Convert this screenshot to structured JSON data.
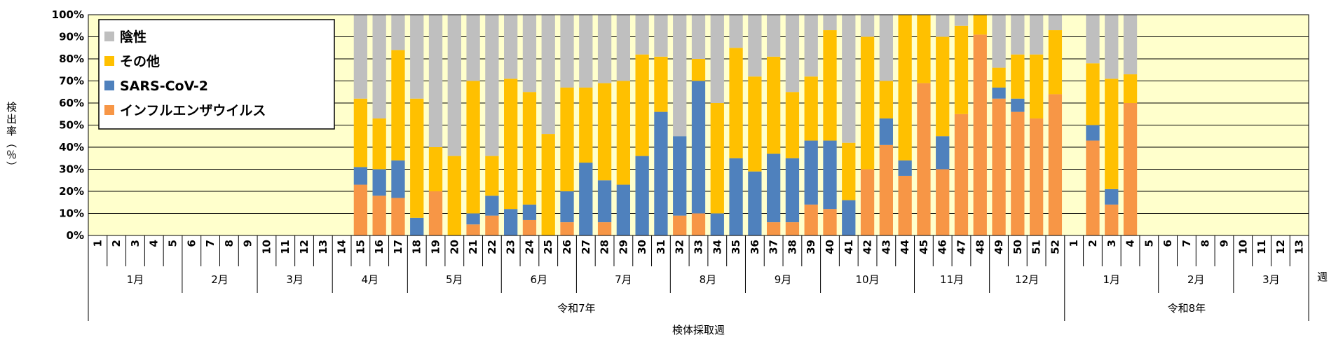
{
  "chart_data": {
    "type": "bar",
    "stacked": true,
    "ylabel": "検出率（％）",
    "xlabel": "検体採取週",
    "x_unit_label": "週",
    "ylim": [
      0,
      100
    ],
    "yticks": [
      "0%",
      "10%",
      "20%",
      "30%",
      "40%",
      "50%",
      "60%",
      "70%",
      "80%",
      "90%",
      "100%"
    ],
    "grid": true,
    "legend_position": "top-left",
    "colors": {
      "plot_background": "#ffffcc",
      "influenza": "#f79646",
      "sars": "#4f81bd",
      "other": "#ffc000",
      "negative": "#bfbfbf"
    },
    "categories": [
      "1",
      "2",
      "3",
      "4",
      "5",
      "6",
      "7",
      "8",
      "9",
      "10",
      "11",
      "12",
      "13",
      "14",
      "15",
      "16",
      "17",
      "18",
      "19",
      "20",
      "21",
      "22",
      "23",
      "24",
      "25",
      "26",
      "27",
      "28",
      "29",
      "30",
      "31",
      "32",
      "33",
      "34",
      "35",
      "36",
      "37",
      "38",
      "39",
      "40",
      "41",
      "42",
      "43",
      "44",
      "45",
      "46",
      "47",
      "48",
      "49",
      "50",
      "51",
      "52",
      "1",
      "2",
      "3",
      "4",
      "5",
      "6",
      "7",
      "8",
      "9",
      "10",
      "11",
      "12",
      "13"
    ],
    "months": [
      {
        "label": "1月",
        "span": [
          0,
          4
        ]
      },
      {
        "label": "2月",
        "span": [
          5,
          8
        ]
      },
      {
        "label": "3月",
        "span": [
          9,
          12
        ]
      },
      {
        "label": "4月",
        "span": [
          13,
          16
        ]
      },
      {
        "label": "5月",
        "span": [
          17,
          21
        ]
      },
      {
        "label": "6月",
        "span": [
          22,
          25
        ]
      },
      {
        "label": "7月",
        "span": [
          26,
          30
        ]
      },
      {
        "label": "8月",
        "span": [
          31,
          34
        ]
      },
      {
        "label": "9月",
        "span": [
          35,
          38
        ]
      },
      {
        "label": "10月",
        "span": [
          39,
          43
        ]
      },
      {
        "label": "11月",
        "span": [
          44,
          47
        ]
      },
      {
        "label": "12月",
        "span": [
          48,
          51
        ]
      },
      {
        "label": "1月",
        "span": [
          52,
          56
        ]
      },
      {
        "label": "2月",
        "span": [
          57,
          60
        ]
      },
      {
        "label": "3月",
        "span": [
          61,
          64
        ]
      }
    ],
    "years": [
      {
        "label": "令和7年",
        "span": [
          0,
          51
        ]
      },
      {
        "label": "令和8年",
        "span": [
          52,
          64
        ]
      }
    ],
    "series": [
      {
        "name": "インフルエンザウイルス",
        "color": "#f79646",
        "values": [
          0,
          0,
          0,
          0,
          0,
          0,
          0,
          0,
          0,
          0,
          0,
          0,
          0,
          0,
          23,
          18,
          17,
          0,
          20,
          0,
          5,
          9,
          0,
          7,
          0,
          6,
          0,
          6,
          0,
          0,
          0,
          9,
          10,
          0,
          0,
          0,
          6,
          6,
          14,
          12,
          0,
          30,
          41,
          27,
          69,
          30,
          55,
          91,
          62,
          56,
          53,
          64,
          0,
          43,
          14,
          60,
          0,
          0,
          0,
          0,
          0,
          0,
          0,
          0,
          0
        ]
      },
      {
        "name": "SARS-CoV-2",
        "color": "#4f81bd",
        "values": [
          0,
          0,
          0,
          0,
          0,
          0,
          0,
          0,
          0,
          0,
          0,
          0,
          0,
          0,
          8,
          12,
          17,
          8,
          0,
          0,
          5,
          9,
          12,
          7,
          0,
          14,
          33,
          19,
          23,
          36,
          56,
          36,
          60,
          10,
          35,
          29,
          31,
          29,
          29,
          31,
          16,
          0,
          12,
          7,
          0,
          15,
          0,
          0,
          5,
          6,
          0,
          0,
          0,
          7,
          7,
          0,
          0,
          0,
          0,
          0,
          0,
          0,
          0,
          0,
          0
        ]
      },
      {
        "name": "その他",
        "color": "#ffc000",
        "values": [
          0,
          0,
          0,
          0,
          0,
          0,
          0,
          0,
          0,
          0,
          0,
          0,
          0,
          0,
          31,
          23,
          50,
          54,
          20,
          36,
          60,
          18,
          59,
          51,
          46,
          47,
          34,
          44,
          47,
          46,
          25,
          0,
          10,
          50,
          50,
          43,
          44,
          30,
          29,
          50,
          26,
          60,
          17,
          66,
          31,
          45,
          40,
          9,
          9,
          20,
          29,
          29,
          0,
          28,
          50,
          13,
          0,
          0,
          0,
          0,
          0,
          0,
          0,
          0,
          0
        ]
      },
      {
        "name": "陰性",
        "color": "#bfbfbf",
        "values": [
          0,
          0,
          0,
          0,
          0,
          0,
          0,
          0,
          0,
          0,
          0,
          0,
          0,
          0,
          38,
          47,
          16,
          38,
          60,
          64,
          30,
          64,
          29,
          35,
          54,
          33,
          33,
          31,
          30,
          18,
          19,
          55,
          20,
          40,
          15,
          28,
          19,
          35,
          28,
          7,
          58,
          10,
          30,
          0,
          0,
          10,
          5,
          0,
          24,
          18,
          18,
          7,
          0,
          22,
          29,
          27,
          0,
          0,
          0,
          0,
          0,
          0,
          0,
          0,
          0
        ]
      }
    ]
  }
}
